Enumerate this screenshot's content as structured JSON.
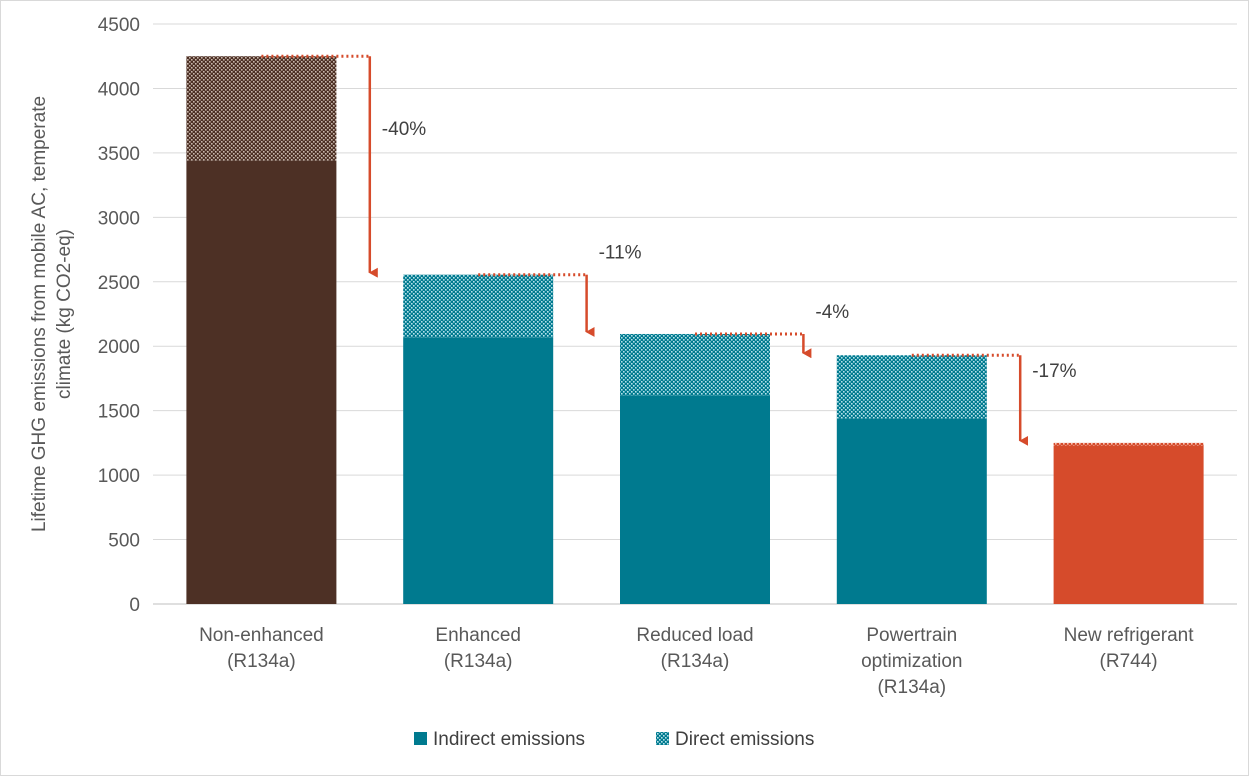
{
  "chart_data": {
    "type": "bar",
    "stacked": true,
    "ylabel": "Lifetime GHG emissions from mobile AC, temperate climate (kg CO2-eq)",
    "ylabel_lines": [
      "Lifetime GHG emissions from mobile AC, temperate",
      "climate (kg CO2-eq)"
    ],
    "ylim": [
      0,
      4500
    ],
    "yticks": [
      0,
      500,
      1000,
      1500,
      2000,
      2500,
      3000,
      3500,
      4000,
      4500
    ],
    "grid": true,
    "legend_position": "bottom",
    "categories": [
      [
        "Non-enhanced",
        "(R134a)"
      ],
      [
        "Enhanced",
        "(R134a)"
      ],
      [
        "Reduced load",
        "(R134a)"
      ],
      [
        "Powertrain",
        "optimization",
        "(R134a)"
      ],
      [
        "New refrigerant",
        "(R744)"
      ]
    ],
    "series": [
      {
        "name": "Indirect emissions",
        "values": [
          3440,
          2070,
          1620,
          1440,
          1230
        ]
      },
      {
        "name": "Direct emissions",
        "values": [
          810,
          485,
          475,
          490,
          20
        ]
      }
    ],
    "bar_colors": [
      "#4d3025",
      "#007a8f",
      "#007a8f",
      "#007a8f",
      "#d64b2b"
    ],
    "legend_color": "#007a8f",
    "arrow_color": "#d64b2b",
    "annotations": [
      {
        "from": 0,
        "to": 1,
        "label": "-40%"
      },
      {
        "from": 1,
        "to": 2,
        "label": "-11%"
      },
      {
        "from": 2,
        "to": 3,
        "label": "-4%"
      },
      {
        "from": 3,
        "to": 4,
        "label": "-17%"
      }
    ]
  }
}
